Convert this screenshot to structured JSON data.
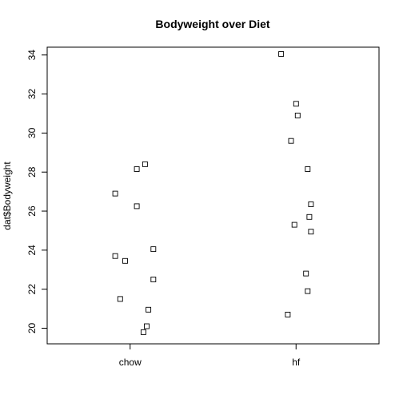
{
  "chart_data": {
    "type": "scatter",
    "title": "Bodyweight over Diet",
    "xlabel": "",
    "ylabel": "dat$Bodyweight",
    "categories": [
      "chow",
      "hf"
    ],
    "yticks": [
      20,
      22,
      24,
      26,
      28,
      30,
      32,
      34
    ],
    "ylim": [
      19.2,
      34.4
    ],
    "xlim": [
      0.5,
      2.5
    ],
    "grid": false,
    "series": [
      {
        "category": "chow",
        "points": [
          {
            "x": 0.91,
            "y": 26.9
          },
          {
            "x": 1.04,
            "y": 28.15
          },
          {
            "x": 1.09,
            "y": 28.4
          },
          {
            "x": 1.04,
            "y": 26.25
          },
          {
            "x": 0.91,
            "y": 23.7
          },
          {
            "x": 0.97,
            "y": 23.45
          },
          {
            "x": 1.14,
            "y": 24.05
          },
          {
            "x": 1.14,
            "y": 22.5
          },
          {
            "x": 0.94,
            "y": 21.5
          },
          {
            "x": 1.11,
            "y": 20.95
          },
          {
            "x": 1.1,
            "y": 20.1
          },
          {
            "x": 1.08,
            "y": 19.8
          }
        ]
      },
      {
        "category": "hf",
        "points": [
          {
            "x": 1.91,
            "y": 34.05
          },
          {
            "x": 2.0,
            "y": 31.5
          },
          {
            "x": 2.01,
            "y": 30.9
          },
          {
            "x": 1.97,
            "y": 29.6
          },
          {
            "x": 2.07,
            "y": 28.15
          },
          {
            "x": 2.09,
            "y": 26.35
          },
          {
            "x": 2.08,
            "y": 25.7
          },
          {
            "x": 1.99,
            "y": 25.3
          },
          {
            "x": 2.09,
            "y": 24.95
          },
          {
            "x": 2.06,
            "y": 22.8
          },
          {
            "x": 2.07,
            "y": 21.9
          },
          {
            "x": 1.95,
            "y": 20.7
          }
        ]
      }
    ]
  }
}
